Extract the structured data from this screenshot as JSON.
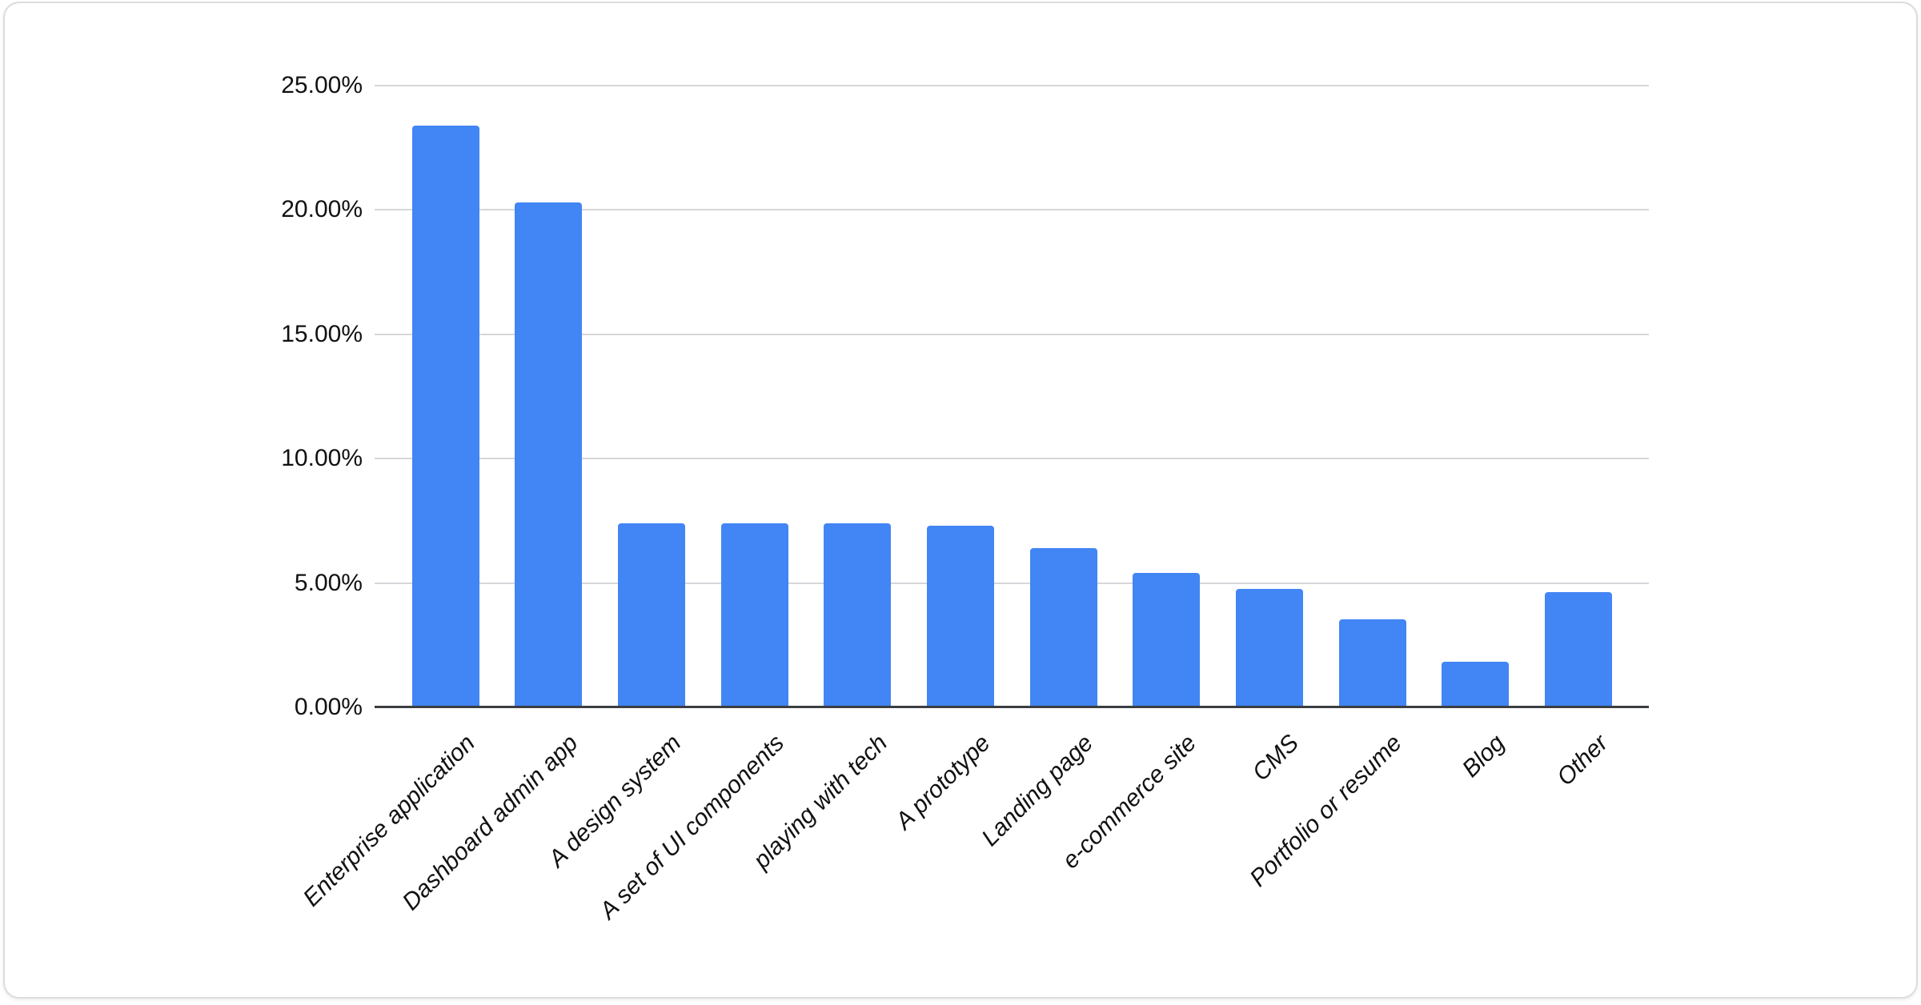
{
  "chart_data": {
    "type": "bar",
    "title": "",
    "xlabel": "",
    "ylabel": "",
    "categories": [
      "Enterprise application",
      "Dashboard admin app",
      "A design system",
      "A set of UI components",
      "playing with tech",
      "A prototype",
      "Landing page",
      "e-commerce site",
      "CMS",
      "Portfolio or resume",
      "Blog",
      "Other"
    ],
    "values": [
      23.4,
      20.3,
      7.4,
      7.4,
      7.4,
      7.3,
      6.4,
      5.4,
      4.75,
      3.55,
      1.85,
      4.65
    ],
    "value_unit": "%",
    "ylim": [
      0,
      25
    ],
    "grid": true,
    "legend": false,
    "x_label_rotation_deg": 45,
    "y_ticks": [
      {
        "value": 25,
        "label": "25.00%"
      },
      {
        "value": 20,
        "label": "20.00%"
      },
      {
        "value": 15,
        "label": "15.00%"
      },
      {
        "value": 10,
        "label": "10.00%"
      },
      {
        "value": 5,
        "label": "5.00%"
      },
      {
        "value": 0,
        "label": "0.00%"
      }
    ]
  },
  "colors": {
    "bar": "#4285f4",
    "gridline": "#d5d7da",
    "axis_line": "#3b3f42",
    "tick_text": "#111111",
    "card_background": "#ffffff",
    "card_border": "#dadce0"
  }
}
